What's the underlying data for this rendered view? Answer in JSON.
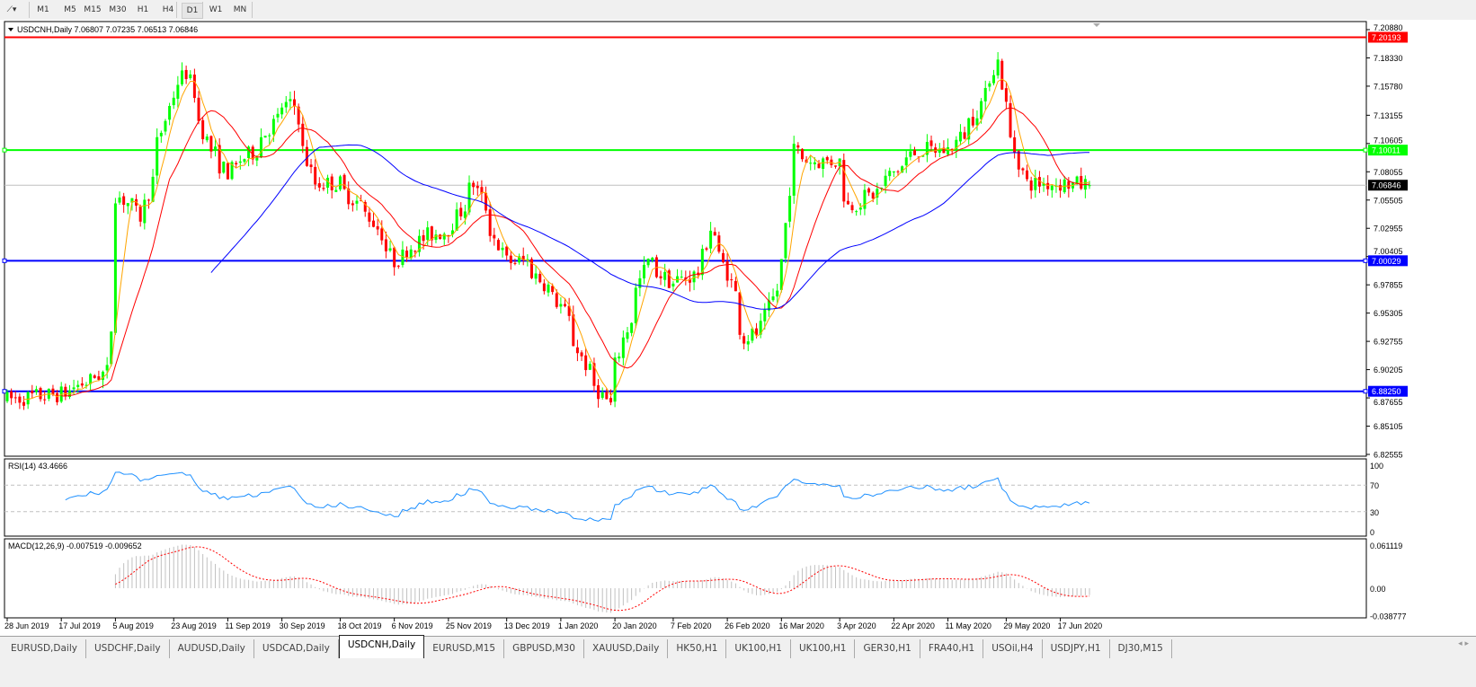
{
  "toolbar": {
    "timeframes": [
      "M1",
      "M5",
      "M15",
      "M30",
      "H1",
      "H4",
      "D1",
      "W1",
      "MN"
    ],
    "active_timeframe": "D1"
  },
  "chart": {
    "header": "USDCNH,Daily  7.06807 7.07235 7.06513 7.06846",
    "price_ticks": [
      "7.20880",
      "7.18330",
      "7.15780",
      "7.13155",
      "7.10605",
      "7.08055",
      "7.05505",
      "7.02955",
      "7.00405",
      "6.97855",
      "6.95305",
      "6.92755",
      "6.90205",
      "6.87655",
      "6.85105",
      "6.82555"
    ],
    "horizontal_lines": [
      {
        "price": "7.20193",
        "color": "#ff0000",
        "text_color": "#ffffff"
      },
      {
        "price": "7.10011",
        "color": "#00ff00",
        "text_color": "#ffffff"
      },
      {
        "price": "7.00029",
        "color": "#0000ff",
        "text_color": "#ffffff"
      },
      {
        "price": "6.88250",
        "color": "#0000ff",
        "text_color": "#ffffff"
      }
    ],
    "current_price": "7.06846",
    "colors": {
      "bull": "#00ff00",
      "bear": "#ff0000",
      "ma_fast": "#ffa500",
      "ma_mid": "#ff0000",
      "ma_slow": "#0000ff",
      "rsi": "#1e90ff",
      "macd_signal": "#ff0000",
      "macd_hist": "#c0c0c0"
    },
    "date_labels": [
      "28 Jun 2019",
      "17 Jul 2019",
      "5 Aug 2019",
      "23 Aug 2019",
      "11 Sep 2019",
      "30 Sep 2019",
      "18 Oct 2019",
      "6 Nov 2019",
      "25 Nov 2019",
      "13 Dec 2019",
      "1 Jan 2020",
      "20 Jan 2020",
      "7 Feb 2020",
      "26 Feb 2020",
      "16 Mar 2020",
      "3 Apr 2020",
      "22 Apr 2020",
      "11 May 2020",
      "29 May 2020",
      "17 Jun 2020"
    ]
  },
  "rsi": {
    "label": "RSI(14) 43.4666",
    "ticks": [
      "100",
      "70",
      "30",
      "0"
    ]
  },
  "macd": {
    "label": "MACD(12,26,9) -0.007519 -0.009652",
    "ticks": [
      "0.061119",
      "0.00",
      "-0.038777"
    ]
  },
  "chart_data": {
    "type": "candlestick",
    "symbol": "USDCNH",
    "timeframe": "Daily",
    "ylim": [
      6.82555,
      7.2088
    ],
    "approx_close_path": [
      [
        "2019-06-28",
        6.875
      ],
      [
        "2019-07-17",
        6.88
      ],
      [
        "2019-08-01",
        6.9
      ],
      [
        "2019-08-05",
        7.06
      ],
      [
        "2019-08-13",
        7.04
      ],
      [
        "2019-08-23",
        7.15
      ],
      [
        "2019-08-28",
        7.17
      ],
      [
        "2019-09-05",
        7.1
      ],
      [
        "2019-09-11",
        7.08
      ],
      [
        "2019-09-20",
        7.1
      ],
      [
        "2019-09-30",
        7.14
      ],
      [
        "2019-10-03",
        7.14
      ],
      [
        "2019-10-10",
        7.07
      ],
      [
        "2019-10-18",
        7.07
      ],
      [
        "2019-10-29",
        7.04
      ],
      [
        "2019-11-06",
        7.0
      ],
      [
        "2019-11-15",
        7.02
      ],
      [
        "2019-11-25",
        7.03
      ],
      [
        "2019-12-03",
        7.07
      ],
      [
        "2019-12-13",
        7.0
      ],
      [
        "2019-12-20",
        7.0
      ],
      [
        "2020-01-01",
        6.96
      ],
      [
        "2020-01-10",
        6.9
      ],
      [
        "2020-01-17",
        6.87
      ],
      [
        "2020-01-22",
        6.93
      ],
      [
        "2020-01-30",
        7.0
      ],
      [
        "2020-02-07",
        6.98
      ],
      [
        "2020-02-17",
        6.99
      ],
      [
        "2020-02-20",
        7.03
      ],
      [
        "2020-02-26",
        6.99
      ],
      [
        "2020-03-03",
        6.93
      ],
      [
        "2020-03-09",
        6.94
      ],
      [
        "2020-03-16",
        7.0
      ],
      [
        "2020-03-19",
        7.1
      ],
      [
        "2020-03-25",
        7.09
      ],
      [
        "2020-04-03",
        7.09
      ],
      [
        "2020-04-07",
        7.05
      ],
      [
        "2020-04-15",
        7.06
      ],
      [
        "2020-04-22",
        7.08
      ],
      [
        "2020-04-30",
        7.1
      ],
      [
        "2020-05-11",
        7.1
      ],
      [
        "2020-05-19",
        7.13
      ],
      [
        "2020-05-27",
        7.18
      ],
      [
        "2020-05-29",
        7.14
      ],
      [
        "2020-06-05",
        7.07
      ],
      [
        "2020-06-17",
        7.07
      ],
      [
        "2020-06-26",
        7.06846
      ]
    ],
    "last_bar": {
      "open": 7.06807,
      "high": 7.07235,
      "low": 7.06513,
      "close": 7.06846
    }
  },
  "tabs": {
    "items": [
      "EURUSD,Daily",
      "USDCHF,Daily",
      "AUDUSD,Daily",
      "USDCAD,Daily",
      "USDCNH,Daily",
      "EURUSD,M15",
      "GBPUSD,M30",
      "XAUUSD,Daily",
      "HK50,H1",
      "UK100,H1",
      "UK100,H1",
      "GER30,H1",
      "FRA40,H1",
      "USOil,H4",
      "USDJPY,H1",
      "DJ30,M15"
    ],
    "active": "USDCNH,Daily",
    "scroll": "◂ ▸"
  }
}
